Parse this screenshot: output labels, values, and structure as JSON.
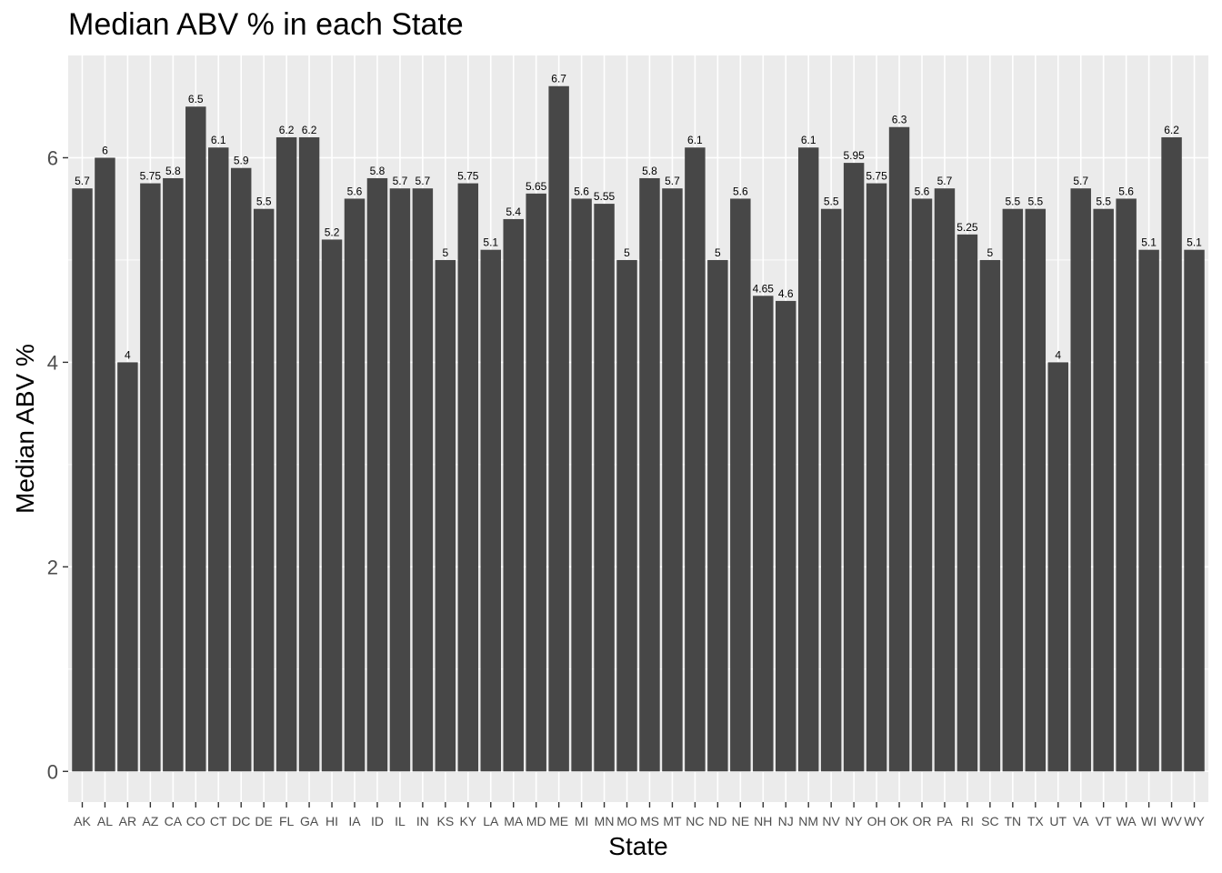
{
  "chart_data": {
    "type": "bar",
    "title": "Median ABV % in each State",
    "xlabel": "State",
    "ylabel": "Median ABV %",
    "ylim": [
      -0.3,
      7.0
    ],
    "yticks": [
      0,
      2,
      4,
      6
    ],
    "grid": true,
    "legend": "none",
    "colors": {
      "bar": "#474747",
      "panel": "#ebebeb",
      "grid": "#ffffff"
    },
    "categories": [
      "AK",
      "AL",
      "AR",
      "AZ",
      "CA",
      "CO",
      "CT",
      "DC",
      "DE",
      "FL",
      "GA",
      "HI",
      "IA",
      "ID",
      "IL",
      "IN",
      "KS",
      "KY",
      "LA",
      "MA",
      "MD",
      "ME",
      "MI",
      "MN",
      "MO",
      "MS",
      "MT",
      "NC",
      "ND",
      "NE",
      "NH",
      "NJ",
      "NM",
      "NV",
      "NY",
      "OH",
      "OK",
      "OR",
      "PA",
      "RI",
      "SC",
      "TN",
      "TX",
      "UT",
      "VA",
      "VT",
      "WA",
      "WI",
      "WV",
      "WY"
    ],
    "values": [
      5.7,
      6,
      4,
      5.75,
      5.8,
      6.5,
      6.1,
      5.9,
      5.5,
      6.2,
      6.2,
      5.2,
      5.6,
      5.8,
      5.7,
      5.7,
      5,
      5.75,
      5.1,
      5.4,
      5.65,
      6.7,
      5.6,
      5.55,
      5,
      5.8,
      5.7,
      6.1,
      5,
      5.6,
      4.65,
      4.6,
      6.1,
      5.5,
      5.95,
      5.75,
      6.3,
      5.6,
      5.7,
      5.25,
      5,
      5.5,
      5.5,
      4,
      5.7,
      5.5,
      5.6,
      5.1,
      6.2,
      5.1
    ],
    "labels": [
      "5.7",
      "6",
      "4",
      "5.75",
      "5.8",
      "6.5",
      "6.1",
      "5.9",
      "5.5",
      "6.2",
      "6.2",
      "5.2",
      "5.6",
      "5.8",
      "5.7",
      "5.7",
      "5",
      "5.75",
      "5.1",
      "5.4",
      "5.65",
      "6.7",
      "5.6",
      "5.55",
      "5",
      "5.8",
      "5.7",
      "6.1",
      "5",
      "5.6",
      "4.65",
      "4.6",
      "6.1",
      "5.5",
      "5.95",
      "5.75",
      "6.3",
      "5.6",
      "5.7",
      "5.25",
      "5",
      "5.5",
      "5.5",
      "4",
      "5.7",
      "5.5",
      "5.6",
      "5.1",
      "6.2",
      "5.1"
    ]
  }
}
